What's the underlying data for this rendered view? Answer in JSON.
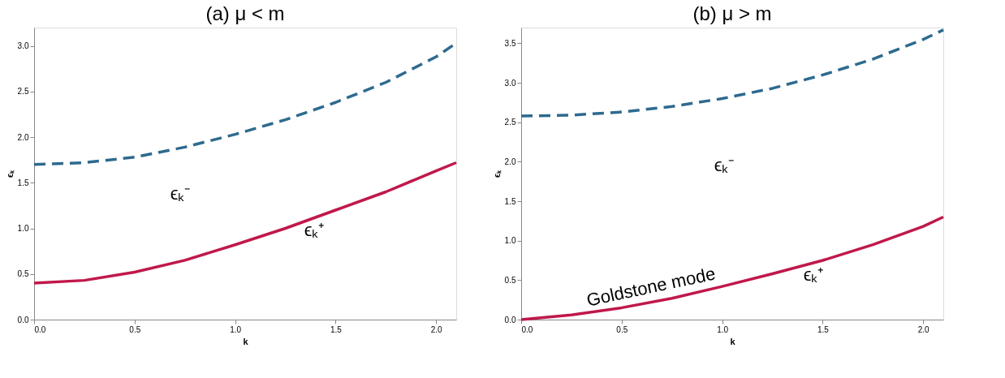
{
  "chart_data": [
    {
      "type": "line",
      "title": "(a) μ < m",
      "xlabel": "k",
      "ylabel": "ϵₖ",
      "x": [
        0,
        0.25,
        0.5,
        0.75,
        1.0,
        1.25,
        1.5,
        1.75,
        2.0,
        2.1
      ],
      "series": [
        {
          "color": "#2e6a8e",
          "line_style": "dashed",
          "values": [
            1.7,
            1.72,
            1.78,
            1.89,
            2.03,
            2.19,
            2.38,
            2.6,
            2.88,
            3.03
          ]
        },
        {
          "color": "#c0184a",
          "line_style": "solid",
          "values": [
            0.4,
            0.43,
            0.52,
            0.65,
            0.82,
            1.0,
            1.2,
            1.4,
            1.63,
            1.72
          ]
        }
      ],
      "annotations": [
        "ϵₖ⁻",
        "ϵₖ⁺"
      ],
      "xlim": [
        0,
        2.1
      ],
      "xticks": [
        {
          "value": 0,
          "label": "0.0"
        },
        {
          "value": 0.5,
          "label": "0.5"
        },
        {
          "value": 1,
          "label": "1.0"
        },
        {
          "value": 1.5,
          "label": "1.5"
        },
        {
          "value": 2,
          "label": "2.0"
        }
      ],
      "ylim": [
        0,
        3.2
      ],
      "yticks": [
        {
          "value": 0,
          "label": "0.0"
        },
        {
          "value": 0.5,
          "label": "0.5"
        },
        {
          "value": 1,
          "label": "1.0"
        },
        {
          "value": 1.5,
          "label": "1.5"
        },
        {
          "value": 2,
          "label": "2.0"
        },
        {
          "value": 2.5,
          "label": "2.5"
        },
        {
          "value": 3,
          "label": "3.0"
        }
      ],
      "grid": false,
      "marker": "none"
    },
    {
      "type": "line",
      "title": "(b) μ > m",
      "xlabel": "k",
      "ylabel": "ϵₖ",
      "x": [
        0,
        0.25,
        0.5,
        0.75,
        1.0,
        1.25,
        1.5,
        1.75,
        2.0,
        2.1
      ],
      "series": [
        {
          "color": "#2e6a8e",
          "line_style": "dashed",
          "values": [
            2.58,
            2.59,
            2.63,
            2.7,
            2.8,
            2.93,
            3.1,
            3.3,
            3.55,
            3.67
          ]
        },
        {
          "color": "#c0184a",
          "line_style": "solid",
          "values": [
            0.0,
            0.06,
            0.15,
            0.27,
            0.42,
            0.58,
            0.75,
            0.95,
            1.18,
            1.3
          ]
        }
      ],
      "annotations": [
        "ϵₖ⁻",
        "ϵₖ⁺",
        "Goldstone mode"
      ],
      "xlim": [
        0,
        2.1
      ],
      "xticks": [
        {
          "value": 0,
          "label": "0.0"
        },
        {
          "value": 0.5,
          "label": "0.5"
        },
        {
          "value": 1,
          "label": "1.0"
        },
        {
          "value": 1.5,
          "label": "1.5"
        },
        {
          "value": 2,
          "label": "2.0"
        }
      ],
      "ylim": [
        0,
        3.7
      ],
      "yticks": [
        {
          "value": 0,
          "label": "0.0"
        },
        0.5,
        {
          "value": 1,
          "label": "1.0"
        },
        1.5,
        {
          "value": 2,
          "label": "2.0"
        },
        2.5,
        {
          "value": 3,
          "label": "3.0"
        },
        3.5
      ],
      "grid": false,
      "marker": "none"
    }
  ]
}
